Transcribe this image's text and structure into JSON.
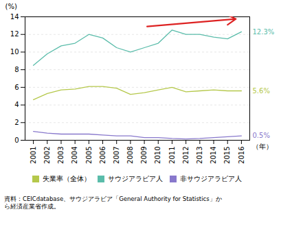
{
  "chart_data": {
    "type": "line",
    "x": [
      2001,
      2002,
      2003,
      2004,
      2005,
      2006,
      2007,
      2008,
      2009,
      2010,
      2011,
      2012,
      2013,
      2014,
      2015,
      2016
    ],
    "series": [
      {
        "name": "失業率（全体）",
        "color": "#b5c84b",
        "values": [
          4.6,
          5.3,
          5.7,
          5.8,
          6.1,
          6.1,
          5.9,
          5.2,
          5.4,
          5.7,
          6.0,
          5.5,
          5.6,
          5.7,
          5.6,
          5.6
        ]
      },
      {
        "name": "サウジアラビア人",
        "color": "#5abcaa",
        "values": [
          8.5,
          9.8,
          10.7,
          11.0,
          12.0,
          11.6,
          10.5,
          10.0,
          10.5,
          11.0,
          12.5,
          12.0,
          12.0,
          11.7,
          11.5,
          12.3
        ]
      },
      {
        "name": "非サウジアラビア人",
        "color": "#8878cc",
        "values": [
          1.0,
          0.8,
          0.7,
          0.7,
          0.7,
          0.6,
          0.5,
          0.5,
          0.3,
          0.3,
          0.2,
          0.15,
          0.2,
          0.3,
          0.4,
          0.5
        ]
      }
    ],
    "xlabel": "（年）",
    "ylabel": "(%)",
    "xlim": [
      2000.4,
      2016.6
    ],
    "xticks": [
      2001,
      2002,
      2003,
      2004,
      2005,
      2006,
      2007,
      2008,
      2009,
      2010,
      2011,
      2012,
      2013,
      2014,
      2015,
      2016
    ],
    "ylim": [
      0,
      14
    ],
    "yticks": [
      0,
      2,
      4,
      6,
      8,
      10,
      12,
      14
    ],
    "grid": true,
    "legend": "bottom",
    "annotations": [
      {
        "text": "12.3%",
        "y": 12.3,
        "color": "#5abcaa"
      },
      {
        "text": "5.6%",
        "y": 5.6,
        "color": "#b5c84b"
      },
      {
        "text": "0.5%",
        "y": 0.5,
        "color": "#8878cc"
      }
    ],
    "arrows": [
      {
        "x1": 2009.2,
        "y1": 12.9,
        "x2": 2015.6,
        "y2": 13.75,
        "color": "#dd2222"
      }
    ],
    "caption": [
      "資料：CEICdatabase、サウジアラビア「General Authority for Statistics」か",
      "ら経済産業省作成。"
    ]
  }
}
